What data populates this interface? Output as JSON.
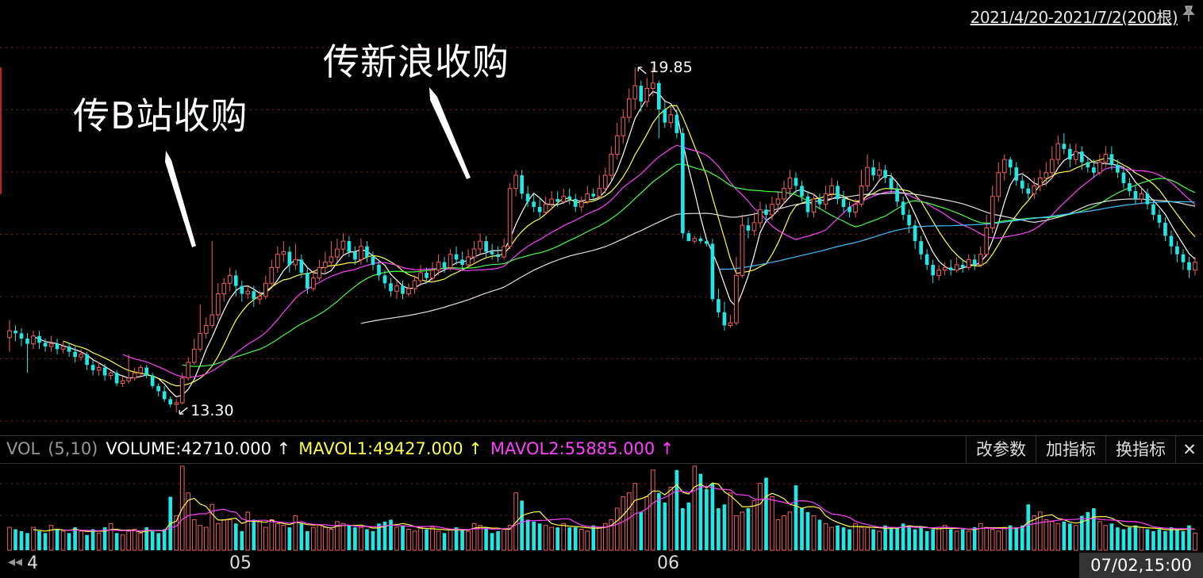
{
  "header": {
    "date_range": "2021/4/20-2021/7/2(200根)"
  },
  "annotations": {
    "bilibili": "传B站收购",
    "sina": "传新浪收购"
  },
  "price_labels": {
    "low": "13.30",
    "high": "19.85"
  },
  "volume_panel": {
    "name": "VOL",
    "params": "(5,10)",
    "volume": "VOLUME:42710.000 ↑",
    "mavol1": "MAVOL1:49427.000 ↑",
    "mavol2": "MAVOL2:55885.000 ↑",
    "buttons": {
      "modify": "改参数",
      "add": "加指标",
      "switch": "换指标",
      "close": "✕"
    }
  },
  "x_axis": {
    "nav": "◂◂",
    "first": "4",
    "may": "05",
    "june": "06",
    "current": "07/02,15:00"
  },
  "colors": {
    "up": "#f06060",
    "down": "#22e5e5",
    "ma5": "#ffffff",
    "ma10": "#ffff40",
    "ma20": "#ff40ff",
    "ma30": "#44ff44",
    "ma60": "#e0e0e0",
    "ma120": "#40c0ff"
  },
  "chart_data": {
    "type": "candlestick",
    "ylim": [
      13.0,
      20.3
    ],
    "candles": [
      [
        14.72,
        14.85,
        15.05,
        14.45
      ],
      [
        14.85,
        14.8,
        14.95,
        14.65
      ],
      [
        14.8,
        14.7,
        14.9,
        14.55
      ],
      [
        14.7,
        14.6,
        14.8,
        14.05
      ],
      [
        14.6,
        14.75,
        14.85,
        14.5
      ],
      [
        14.75,
        14.62,
        14.85,
        14.5
      ],
      [
        14.62,
        14.55,
        14.7,
        14.45
      ],
      [
        14.55,
        14.6,
        14.75,
        14.45
      ],
      [
        14.6,
        14.5,
        14.7,
        14.4
      ],
      [
        14.5,
        14.55,
        14.65,
        14.42
      ],
      [
        14.55,
        14.45,
        14.62,
        14.35
      ],
      [
        14.45,
        14.35,
        14.55,
        14.25
      ],
      [
        14.35,
        14.4,
        14.5,
        14.28
      ],
      [
        14.4,
        14.2,
        14.45,
        14.1
      ],
      [
        14.2,
        14.1,
        14.3,
        14.0
      ],
      [
        14.1,
        14.15,
        14.25,
        14.0
      ],
      [
        14.15,
        14.0,
        14.22,
        13.9
      ],
      [
        14.0,
        14.05,
        14.1,
        13.92
      ],
      [
        14.05,
        13.85,
        14.1,
        13.8
      ],
      [
        13.85,
        13.9,
        13.98,
        13.78
      ],
      [
        13.9,
        13.95,
        14.4,
        13.85
      ],
      [
        13.95,
        14.05,
        14.15,
        13.9
      ],
      [
        14.05,
        14.15,
        14.2,
        13.98
      ],
      [
        14.15,
        14.0,
        14.2,
        13.95
      ],
      [
        14.0,
        13.8,
        14.05,
        13.75
      ],
      [
        13.8,
        13.7,
        13.85,
        13.6
      ],
      [
        13.7,
        13.55,
        13.8,
        13.5
      ],
      [
        13.55,
        13.45,
        13.6,
        13.4
      ],
      [
        13.45,
        13.48,
        13.55,
        13.3
      ],
      [
        13.48,
        13.95,
        14.05,
        13.45
      ],
      [
        13.95,
        14.25,
        14.35,
        13.9
      ],
      [
        14.25,
        14.5,
        14.7,
        14.2
      ],
      [
        14.5,
        14.8,
        15.35,
        14.45
      ],
      [
        14.8,
        14.95,
        15.1,
        14.7
      ],
      [
        14.95,
        15.15,
        16.55,
        14.9
      ],
      [
        15.15,
        15.55,
        15.75,
        15.05
      ],
      [
        15.55,
        15.75,
        15.85,
        15.4
      ],
      [
        15.75,
        15.9,
        16.05,
        15.6
      ],
      [
        15.9,
        15.7,
        16.0,
        15.5
      ],
      [
        15.7,
        15.55,
        15.8,
        15.4
      ],
      [
        15.55,
        15.6,
        15.7,
        15.45
      ],
      [
        15.6,
        15.45,
        15.7,
        15.3
      ],
      [
        15.45,
        15.5,
        15.6,
        15.35
      ],
      [
        15.5,
        15.75,
        15.9,
        15.45
      ],
      [
        15.75,
        16.05,
        16.2,
        15.7
      ],
      [
        16.05,
        16.3,
        16.45,
        15.95
      ],
      [
        16.3,
        16.35,
        16.55,
        16.15
      ],
      [
        16.35,
        16.1,
        16.45,
        15.95
      ],
      [
        16.1,
        16.2,
        16.5,
        16.0
      ],
      [
        16.2,
        15.95,
        16.3,
        15.85
      ],
      [
        15.95,
        15.65,
        16.05,
        15.55
      ],
      [
        15.65,
        15.85,
        16.0,
        15.6
      ],
      [
        15.85,
        16.05,
        16.2,
        15.8
      ],
      [
        16.05,
        16.15,
        16.35,
        15.95
      ],
      [
        16.15,
        16.25,
        16.55,
        16.05
      ],
      [
        16.25,
        16.4,
        16.6,
        16.15
      ],
      [
        16.4,
        16.55,
        16.7,
        16.3
      ],
      [
        16.55,
        16.35,
        16.65,
        16.25
      ],
      [
        16.35,
        16.2,
        16.45,
        16.1
      ],
      [
        16.2,
        16.45,
        16.6,
        16.1
      ],
      [
        16.45,
        16.25,
        16.55,
        16.15
      ],
      [
        16.25,
        16.1,
        16.35,
        16.0
      ],
      [
        16.1,
        15.9,
        16.2,
        15.8
      ],
      [
        15.9,
        15.75,
        16.0,
        15.65
      ],
      [
        15.75,
        15.6,
        15.85,
        15.5
      ],
      [
        15.6,
        15.7,
        15.8,
        15.45
      ],
      [
        15.7,
        15.55,
        15.8,
        15.45
      ],
      [
        15.55,
        15.65,
        15.75,
        15.5
      ],
      [
        15.65,
        15.8,
        15.9,
        15.55
      ],
      [
        15.8,
        15.95,
        16.1,
        15.7
      ],
      [
        15.95,
        15.85,
        16.05,
        15.75
      ],
      [
        15.85,
        16.0,
        16.15,
        15.8
      ],
      [
        16.0,
        16.15,
        16.3,
        15.9
      ],
      [
        16.15,
        16.05,
        16.25,
        15.95
      ],
      [
        16.05,
        16.3,
        16.4,
        16.0
      ],
      [
        16.3,
        16.2,
        16.45,
        16.1
      ],
      [
        16.2,
        16.1,
        16.35,
        16.0
      ],
      [
        16.1,
        16.25,
        16.4,
        16.05
      ],
      [
        16.25,
        16.4,
        16.55,
        16.15
      ],
      [
        16.4,
        16.55,
        16.7,
        16.3
      ],
      [
        16.55,
        16.35,
        16.65,
        16.25
      ],
      [
        16.35,
        16.3,
        16.5,
        16.2
      ],
      [
        16.3,
        16.25,
        16.45,
        16.15
      ],
      [
        16.25,
        16.45,
        16.6,
        16.2
      ],
      [
        16.45,
        17.55,
        17.65,
        16.4
      ],
      [
        17.55,
        17.8,
        17.9,
        17.4
      ],
      [
        17.8,
        17.45,
        17.9,
        17.35
      ],
      [
        17.45,
        17.3,
        17.6,
        17.2
      ],
      [
        17.3,
        17.2,
        17.45,
        17.1
      ],
      [
        17.2,
        17.1,
        17.35,
        17.0
      ],
      [
        17.1,
        17.25,
        17.4,
        17.05
      ],
      [
        17.25,
        17.35,
        17.5,
        17.15
      ],
      [
        17.35,
        17.3,
        17.5,
        17.2
      ],
      [
        17.3,
        17.4,
        17.55,
        17.25
      ],
      [
        17.4,
        17.35,
        17.55,
        17.25
      ],
      [
        17.35,
        17.2,
        17.45,
        17.1
      ],
      [
        17.2,
        17.3,
        17.4,
        17.1
      ],
      [
        17.3,
        17.45,
        17.6,
        17.25
      ],
      [
        17.45,
        17.4,
        17.55,
        17.3
      ],
      [
        17.4,
        17.55,
        17.8,
        17.35
      ],
      [
        17.55,
        17.8,
        17.95,
        17.45
      ],
      [
        17.8,
        18.2,
        18.35,
        17.7
      ],
      [
        18.2,
        18.55,
        18.8,
        18.1
      ],
      [
        18.55,
        18.9,
        19.05,
        18.4
      ],
      [
        18.9,
        19.25,
        19.45,
        18.8
      ],
      [
        19.25,
        19.5,
        19.85,
        19.05
      ],
      [
        19.5,
        19.2,
        19.6,
        19.0
      ],
      [
        19.2,
        19.45,
        19.65,
        19.1
      ],
      [
        19.45,
        19.55,
        19.85,
        19.3
      ],
      [
        19.55,
        19.05,
        19.6,
        18.5
      ],
      [
        19.05,
        18.8,
        19.2,
        18.7
      ],
      [
        18.8,
        18.95,
        19.1,
        18.7
      ],
      [
        18.95,
        18.6,
        19.05,
        18.5
      ],
      [
        18.6,
        16.7,
        18.7,
        16.6
      ],
      [
        16.7,
        16.55,
        16.75,
        16.55
      ],
      [
        16.55,
        16.6,
        16.65,
        16.5
      ],
      [
        16.6,
        16.55,
        16.65,
        16.5
      ],
      [
        16.55,
        16.5,
        16.6,
        16.45
      ],
      [
        16.5,
        15.45,
        16.6,
        15.4
      ],
      [
        15.45,
        15.2,
        15.65,
        15.1
      ],
      [
        15.2,
        14.95,
        15.4,
        14.85
      ],
      [
        14.95,
        15.0,
        15.15,
        14.9
      ],
      [
        15.0,
        15.9,
        16.25,
        14.95
      ],
      [
        15.9,
        16.85,
        17.05,
        15.85
      ],
      [
        16.85,
        16.75,
        17.0,
        16.6
      ],
      [
        16.75,
        16.9,
        17.1,
        16.65
      ],
      [
        16.9,
        17.15,
        17.3,
        16.8
      ],
      [
        17.15,
        17.05,
        17.25,
        16.9
      ],
      [
        17.05,
        17.25,
        17.4,
        16.95
      ],
      [
        17.25,
        17.35,
        17.5,
        17.1
      ],
      [
        17.35,
        17.55,
        17.7,
        17.25
      ],
      [
        17.55,
        17.75,
        17.9,
        17.4
      ],
      [
        17.75,
        17.6,
        17.85,
        17.45
      ],
      [
        17.6,
        17.4,
        17.7,
        17.3
      ],
      [
        17.4,
        17.1,
        17.5,
        17.0
      ],
      [
        17.1,
        17.35,
        17.45,
        17.0
      ],
      [
        17.35,
        17.25,
        17.45,
        17.15
      ],
      [
        17.25,
        17.45,
        17.6,
        17.15
      ],
      [
        17.45,
        17.6,
        17.75,
        17.35
      ],
      [
        17.6,
        17.35,
        17.7,
        17.25
      ],
      [
        17.35,
        17.2,
        17.5,
        17.1
      ],
      [
        17.2,
        17.1,
        17.3,
        17.0
      ],
      [
        17.1,
        17.25,
        17.35,
        17.0
      ],
      [
        17.25,
        17.6,
        17.9,
        17.2
      ],
      [
        17.6,
        17.95,
        18.2,
        17.5
      ],
      [
        17.95,
        17.8,
        18.1,
        17.7
      ],
      [
        17.8,
        17.9,
        18.05,
        17.7
      ],
      [
        17.9,
        17.75,
        18.0,
        17.65
      ],
      [
        17.75,
        17.55,
        17.85,
        17.45
      ],
      [
        17.55,
        17.3,
        17.65,
        17.2
      ],
      [
        17.3,
        17.05,
        17.4,
        16.95
      ],
      [
        17.05,
        16.85,
        17.15,
        16.7
      ],
      [
        16.85,
        16.55,
        16.95,
        16.4
      ],
      [
        16.55,
        16.3,
        16.65,
        16.2
      ],
      [
        16.3,
        16.1,
        16.4,
        16.0
      ],
      [
        16.1,
        15.9,
        16.2,
        15.75
      ],
      [
        15.9,
        16.0,
        16.1,
        15.8
      ],
      [
        16.0,
        16.05,
        16.15,
        15.9
      ],
      [
        16.05,
        16.0,
        16.2,
        15.9
      ],
      [
        16.0,
        16.1,
        16.25,
        15.95
      ],
      [
        16.1,
        16.05,
        16.2,
        15.95
      ],
      [
        16.05,
        16.2,
        16.3,
        16.0
      ],
      [
        16.2,
        16.1,
        16.3,
        16.0
      ],
      [
        16.1,
        16.3,
        16.45,
        16.05
      ],
      [
        16.3,
        16.8,
        17.05,
        16.25
      ],
      [
        16.8,
        17.4,
        17.6,
        16.7
      ],
      [
        17.4,
        17.85,
        18.05,
        17.3
      ],
      [
        17.85,
        18.1,
        18.2,
        17.7
      ],
      [
        18.1,
        17.95,
        18.15,
        17.8
      ],
      [
        17.95,
        17.7,
        18.05,
        17.6
      ],
      [
        17.7,
        17.55,
        17.8,
        17.45
      ],
      [
        17.55,
        17.45,
        17.65,
        17.35
      ],
      [
        17.45,
        17.6,
        17.75,
        17.35
      ],
      [
        17.6,
        17.75,
        17.9,
        17.5
      ],
      [
        17.75,
        17.85,
        18.05,
        17.6
      ],
      [
        17.85,
        18.1,
        18.35,
        17.75
      ],
      [
        18.1,
        18.4,
        18.55,
        18.0
      ],
      [
        18.4,
        18.3,
        18.6,
        18.2
      ],
      [
        18.3,
        18.1,
        18.4,
        17.95
      ],
      [
        18.1,
        18.25,
        18.4,
        18.0
      ],
      [
        18.25,
        18.05,
        18.35,
        17.9
      ],
      [
        18.05,
        17.95,
        18.15,
        17.85
      ],
      [
        17.95,
        17.85,
        18.1,
        17.75
      ],
      [
        17.85,
        18.05,
        18.2,
        17.8
      ],
      [
        18.05,
        18.2,
        18.35,
        17.95
      ],
      [
        18.2,
        18.0,
        18.35,
        17.9
      ],
      [
        18.0,
        17.85,
        18.1,
        17.75
      ],
      [
        17.85,
        17.65,
        17.95,
        17.55
      ],
      [
        17.65,
        17.5,
        17.75,
        17.4
      ],
      [
        17.5,
        17.35,
        17.6,
        17.25
      ],
      [
        17.35,
        17.45,
        17.55,
        17.25
      ],
      [
        17.45,
        17.25,
        17.55,
        17.15
      ],
      [
        17.25,
        17.05,
        17.35,
        16.95
      ],
      [
        17.05,
        16.9,
        17.15,
        16.8
      ],
      [
        16.9,
        16.65,
        17.0,
        16.55
      ],
      [
        16.65,
        16.45,
        16.75,
        16.3
      ],
      [
        16.45,
        16.3,
        16.55,
        16.15
      ],
      [
        16.3,
        16.15,
        16.4,
        16.0
      ],
      [
        16.15,
        16.0,
        16.25,
        15.85
      ],
      [
        16.0,
        16.15,
        16.25,
        15.9
      ]
    ],
    "volumes": [
      12,
      11,
      10,
      9,
      12,
      10,
      9,
      13,
      11,
      10,
      9,
      12,
      10,
      8,
      11,
      9,
      12,
      14,
      9,
      8,
      10,
      11,
      9,
      12,
      10,
      9,
      11,
      28,
      18,
      44,
      30,
      16,
      13,
      12,
      24,
      14,
      16,
      16,
      14,
      10,
      20,
      16,
      15,
      12,
      16,
      14,
      13,
      12,
      18,
      14,
      10,
      12,
      13,
      12,
      11,
      15,
      14,
      13,
      12,
      12,
      11,
      10,
      14,
      15,
      16,
      12,
      13,
      11,
      10,
      12,
      11,
      12,
      10,
      9,
      11,
      12,
      11,
      10,
      14,
      13,
      12,
      9,
      10,
      11,
      13,
      30,
      26,
      16,
      15,
      14,
      13,
      12,
      12,
      14,
      12,
      12,
      11,
      10,
      13,
      12,
      14,
      16,
      22,
      28,
      30,
      35,
      20,
      28,
      42,
      30,
      25,
      33,
      42,
      22,
      25,
      44,
      40,
      32,
      35,
      22,
      24,
      30,
      18,
      20,
      22,
      26,
      35,
      38,
      28,
      16,
      18,
      20,
      34,
      22,
      20,
      18,
      16,
      14,
      12,
      13,
      12,
      11,
      14,
      12,
      12,
      11,
      10,
      13,
      12,
      12,
      14,
      13,
      11,
      12,
      10,
      11,
      12,
      13,
      11,
      10,
      11,
      10,
      12,
      14,
      12,
      11,
      10,
      12,
      13,
      12,
      13,
      24,
      18,
      20,
      16,
      15,
      14,
      15,
      14,
      13,
      18,
      20,
      22,
      15,
      13,
      14,
      12,
      11,
      12,
      13,
      12,
      11,
      10,
      11,
      10,
      12,
      11,
      10,
      13,
      9
    ]
  }
}
